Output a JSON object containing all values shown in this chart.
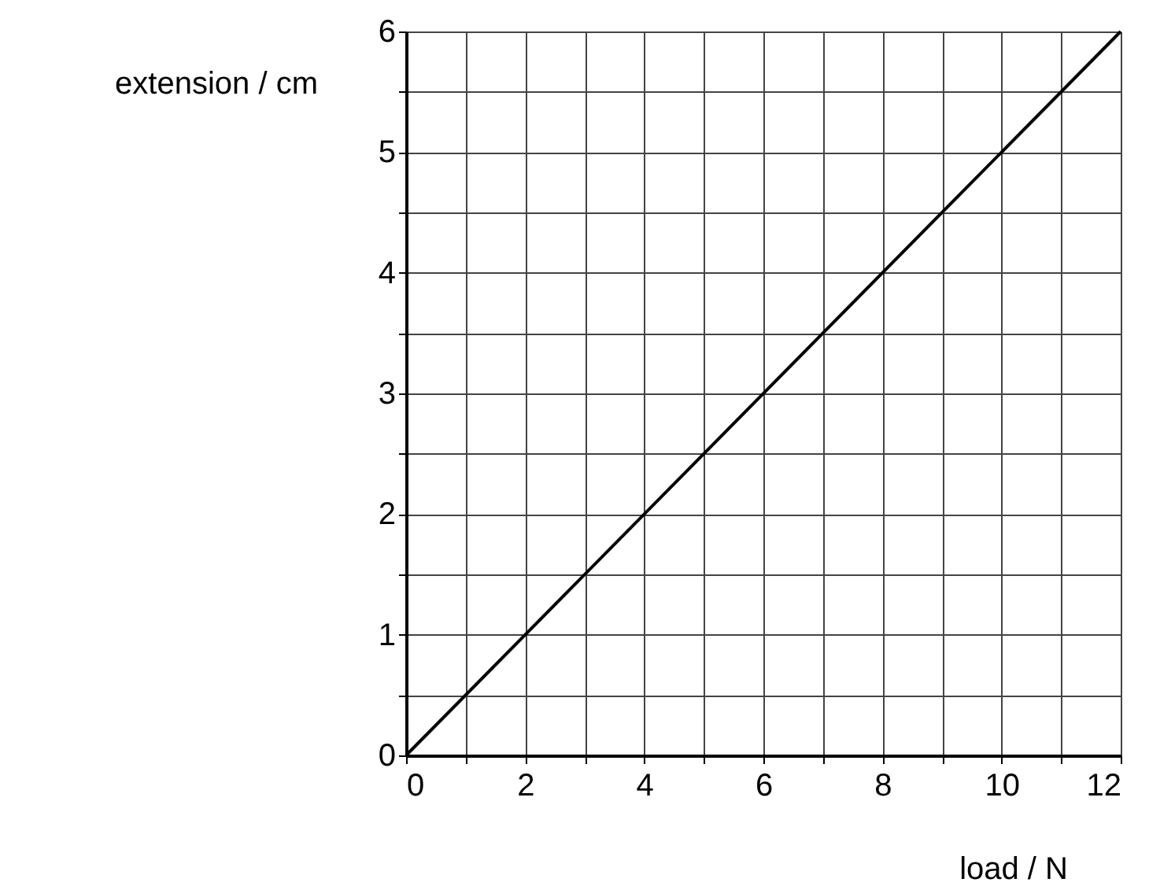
{
  "chart_data": {
    "type": "line",
    "xlabel": "load / N",
    "ylabel": "extension / cm",
    "series": [
      {
        "x": [
          0,
          12
        ],
        "values": [
          0,
          6
        ],
        "color": "#000000"
      }
    ],
    "xlim": [
      0,
      12
    ],
    "ylim": [
      0,
      6
    ],
    "xticks": [
      0,
      {
        "value": 1,
        "label": null
      },
      2,
      {
        "value": 3,
        "label": null
      },
      4,
      {
        "value": 5,
        "label": null
      },
      6,
      {
        "value": 7,
        "label": null
      },
      8,
      {
        "value": 9,
        "label": null
      },
      10,
      {
        "value": 11,
        "label": null
      },
      12
    ],
    "yticks": [
      0,
      {
        "value": 0.5,
        "label": null
      },
      1,
      {
        "value": 1.5,
        "label": null
      },
      2,
      {
        "value": 2.5,
        "label": null
      },
      3,
      {
        "value": 3.5,
        "label": null
      },
      4,
      {
        "value": 4.5,
        "label": null
      },
      5,
      {
        "value": 5.5,
        "label": null
      },
      6
    ],
    "grid": true,
    "legend": false,
    "marker": "none",
    "line_style": "solid"
  }
}
